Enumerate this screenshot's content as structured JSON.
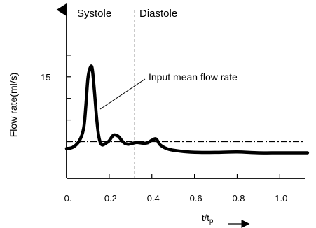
{
  "chart_data": {
    "type": "line",
    "title": "",
    "xlabel": "t/t",
    "xlabel_subscript": "p",
    "ylabel": "Flow rate(ml/s)",
    "xlim": [
      0,
      1.15
    ],
    "ylim": [
      -8.5,
      30.5
    ],
    "x_ticks": [
      0,
      0.2,
      0.4,
      0.6,
      0.8,
      1.0
    ],
    "x_tick_labels": [
      "0.",
      "0.2",
      "0.4",
      "0.6",
      "0.8",
      "1.0"
    ],
    "y_ticks": [
      0,
      5,
      10,
      15,
      20
    ],
    "y_tick_labels": [
      "",
      "",
      "",
      "15",
      ""
    ],
    "grid": false,
    "regions": {
      "left": "Systole",
      "right": "Diastole",
      "boundary_x": 0.32
    },
    "mean_flow_rate": 0,
    "annotation": "Input mean flow rate",
    "series": [
      {
        "x": [
          0.0,
          0.03,
          0.06,
          0.08,
          0.09,
          0.1,
          0.11,
          0.12,
          0.13,
          0.14,
          0.15,
          0.16,
          0.17,
          0.18,
          0.19,
          0.2,
          0.22,
          0.24,
          0.25,
          0.27,
          0.29,
          0.31,
          0.33,
          0.36,
          0.38,
          0.4,
          0.42,
          0.44,
          0.48,
          0.55,
          0.62,
          0.7,
          0.8,
          0.9,
          1.0,
          1.13
        ],
        "y": [
          -1.6,
          -1.3,
          0.2,
          3.0,
          8.0,
          14.5,
          17.0,
          17.0,
          12.0,
          6.0,
          1.5,
          -0.4,
          -0.8,
          -0.5,
          -0.2,
          0.2,
          1.5,
          1.3,
          0.8,
          -0.3,
          -0.6,
          -0.4,
          -0.2,
          -0.4,
          -0.3,
          0.3,
          0.6,
          -0.8,
          -1.8,
          -2.3,
          -2.5,
          -2.5,
          -2.4,
          -2.6,
          -2.6,
          -2.6
        ]
      }
    ]
  }
}
